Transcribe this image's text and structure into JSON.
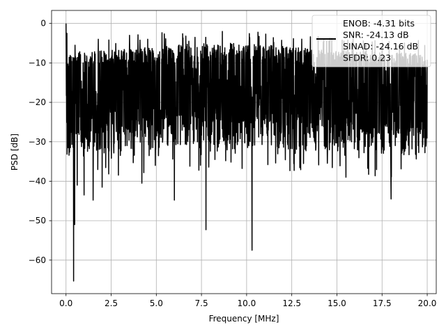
{
  "chart_data": {
    "type": "line",
    "title": "",
    "xlabel": "Frequency [MHz]",
    "ylabel": "PSD [dB]",
    "xlim": [
      -0.8,
      20.5
    ],
    "ylim": [
      -68.5,
      3.3
    ],
    "xticks": [
      0.0,
      2.5,
      5.0,
      7.5,
      10.0,
      12.5,
      15.0,
      17.5,
      20.0
    ],
    "xtick_labels": [
      "0.0",
      "2.5",
      "5.0",
      "7.5",
      "10.0",
      "12.5",
      "15.0",
      "17.5",
      "20.0"
    ],
    "yticks": [
      0,
      -10,
      -20,
      -30,
      -40,
      -50,
      -60
    ],
    "ytick_labels": [
      "0",
      "−10",
      "−20",
      "−30",
      "−40",
      "−50",
      "−60"
    ],
    "grid": true,
    "legend_position": "top-right",
    "line_color": "#000000",
    "series": [
      {
        "name": "ENOB: -4.31 bits\nSNR: -24.13 dB\nSINAD: -24.16 dB\nSFDR: 0.23",
        "x_range": [
          0.0,
          20.0
        ],
        "n_points": 2048,
        "envelope": {
          "upper_db_typical": -7.5,
          "lower_db_typical": -28.0,
          "mean_db": -17.0
        },
        "notable_points": [
          {
            "x": 0.0,
            "y": 0.0
          },
          {
            "x": 0.05,
            "y": -2.5
          },
          {
            "x": 0.42,
            "y": -65.3
          },
          {
            "x": 0.48,
            "y": -51.0
          },
          {
            "x": 0.62,
            "y": -41.0
          },
          {
            "x": 1.0,
            "y": -43.5
          },
          {
            "x": 1.5,
            "y": -44.8
          },
          {
            "x": 2.0,
            "y": -41.5
          },
          {
            "x": 4.2,
            "y": -40.5
          },
          {
            "x": 6.0,
            "y": -44.8
          },
          {
            "x": 7.75,
            "y": -52.3
          },
          {
            "x": 10.3,
            "y": -57.5
          },
          {
            "x": 15.5,
            "y": -39.0
          },
          {
            "x": 18.0,
            "y": -44.5
          },
          {
            "x": 6.8,
            "y": -4.5
          },
          {
            "x": 11.5,
            "y": -4.8
          },
          {
            "x": 17.5,
            "y": -5.0
          }
        ]
      }
    ]
  }
}
